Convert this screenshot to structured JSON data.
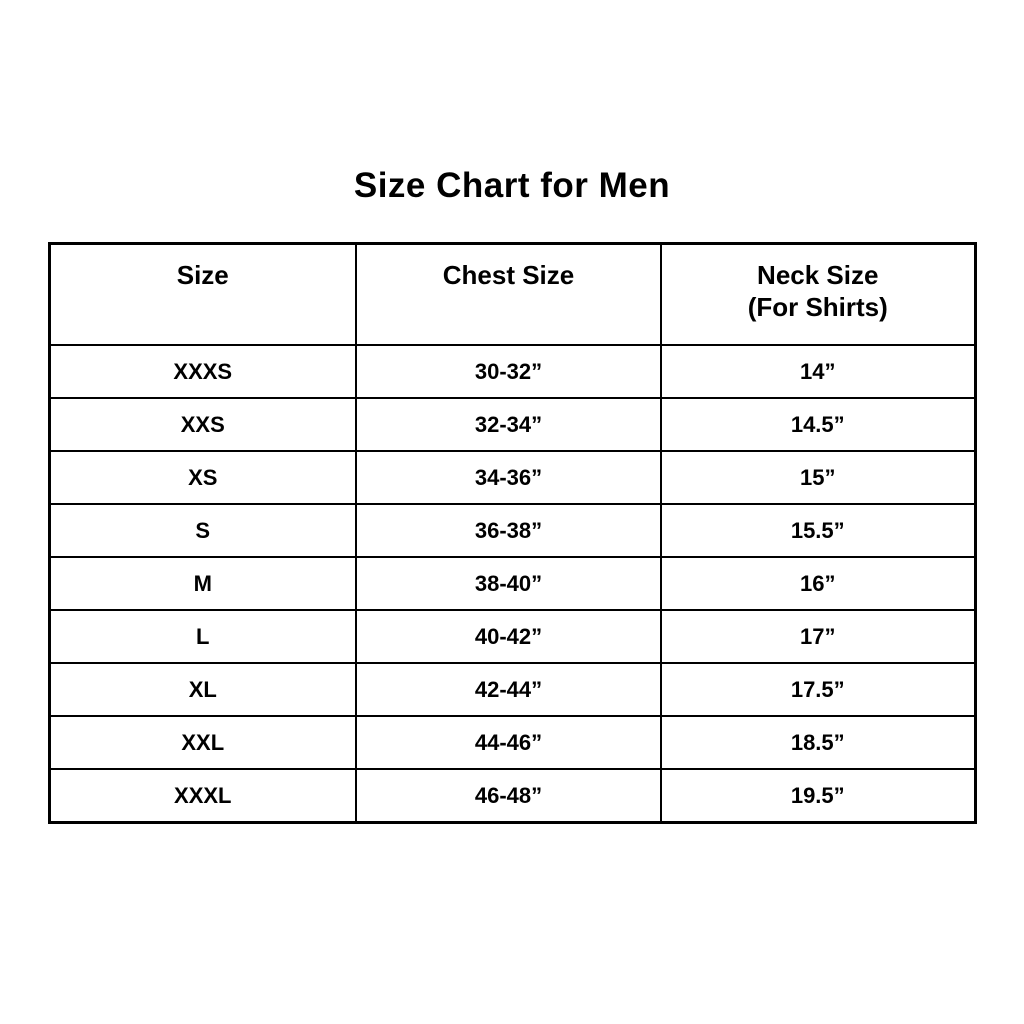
{
  "title": "Size Chart for Men",
  "colors": {
    "background": "#ffffff",
    "text": "#000000",
    "border": "#000000"
  },
  "table": {
    "headers": {
      "size": "Size",
      "chest": "Chest Size",
      "neck_line1": "Neck Size",
      "neck_line2": "(For Shirts)"
    }
  },
  "chart_data": {
    "type": "table",
    "title": "Size Chart for Men",
    "columns": [
      "Size",
      "Chest Size",
      "Neck Size (For Shirts)"
    ],
    "rows": [
      [
        "XXXS",
        "30-32”",
        "14”"
      ],
      [
        "XXS",
        "32-34”",
        "14.5”"
      ],
      [
        "XS",
        "34-36”",
        "15”"
      ],
      [
        "S",
        "36-38”",
        "15.5”"
      ],
      [
        "M",
        "38-40”",
        "16”"
      ],
      [
        "L",
        "40-42”",
        "17”"
      ],
      [
        "XL",
        "42-44”",
        "17.5”"
      ],
      [
        "XXL",
        "44-46”",
        "18.5”"
      ],
      [
        "XXXL",
        "46-48”",
        "19.5”"
      ]
    ]
  }
}
